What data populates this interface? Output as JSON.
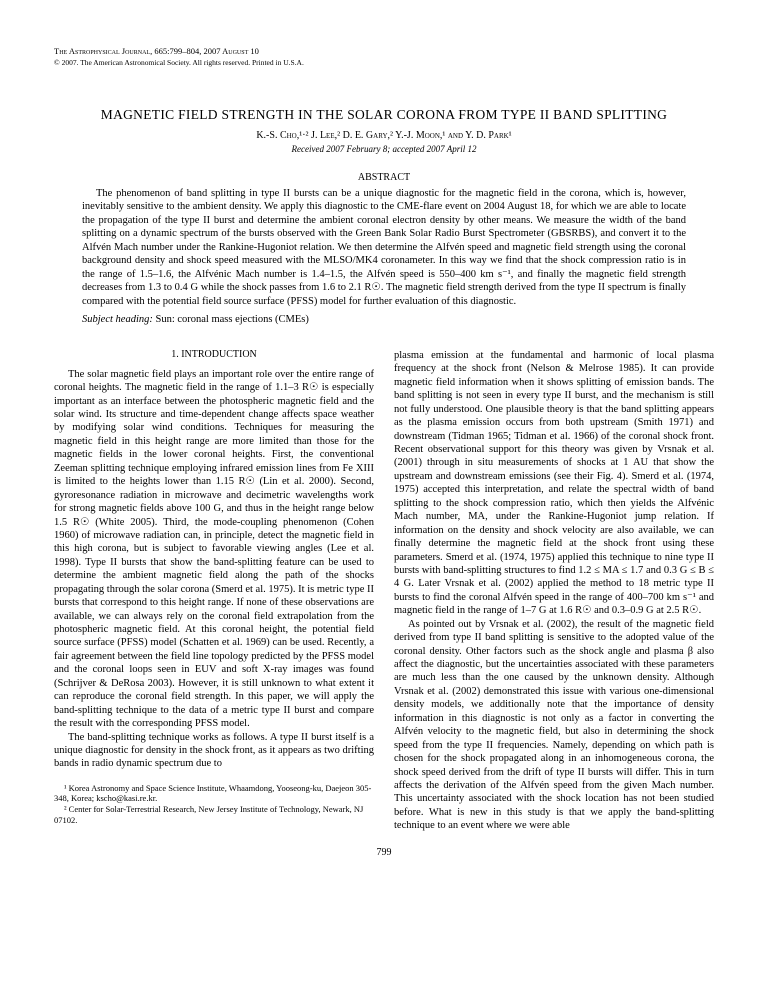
{
  "header": {
    "journal": "The Astrophysical Journal, 665:799–804, 2007 August 10",
    "copyright": "© 2007. The American Astronomical Society. All rights reserved. Printed in U.S.A."
  },
  "title": "MAGNETIC FIELD STRENGTH IN THE SOLAR CORONA FROM TYPE II BAND SPLITTING",
  "authors": "K.-S. Cho,¹·² J. Lee,² D. E. Gary,² Y.-J. Moon,¹ and Y. D. Park¹",
  "received": "Received 2007 February 8; accepted 2007 April 12",
  "abstract": {
    "head": "ABSTRACT",
    "body": "The phenomenon of band splitting in type II bursts can be a unique diagnostic for the magnetic field in the corona, which is, however, inevitably sensitive to the ambient density. We apply this diagnostic to the CME-flare event on 2004 August 18, for which we are able to locate the propagation of the type II burst and determine the ambient coronal electron density by other means. We measure the width of the band splitting on a dynamic spectrum of the bursts observed with the Green Bank Solar Radio Burst Spectrometer (GBSRBS), and convert it to the Alfvén Mach number under the Rankine-Hugoniot relation. We then determine the Alfvén speed and magnetic field strength using the coronal background density and shock speed measured with the MLSO/MK4 coronameter. In this way we find that the shock compression ratio is in the range of 1.5–1.6, the Alfvénic Mach number is 1.4–1.5, the Alfvén speed is 550–400 km s⁻¹, and finally the magnetic field strength decreases from 1.3 to 0.4 G while the shock passes from 1.6 to 2.1 R☉. The magnetic field strength derived from the type II spectrum is finally compared with the potential field source surface (PFSS) model for further evaluation of this diagnostic."
  },
  "subject": {
    "label": "Subject heading:",
    "value": "Sun: coronal mass ejections (CMEs)"
  },
  "section1": {
    "head": "1. INTRODUCTION",
    "p1": "The solar magnetic field plays an important role over the entire range of coronal heights. The magnetic field in the range of 1.1–3 R☉ is especially important as an interface between the photospheric magnetic field and the solar wind. Its structure and time-dependent change affects space weather by modifying solar wind conditions. Techniques for measuring the magnetic field in this height range are more limited than those for the magnetic fields in the lower coronal heights. First, the conventional Zeeman splitting technique employing infrared emission lines from Fe XIII is limited to the heights lower than 1.15 R☉ (Lin et al. 2000). Second, gyroresonance radiation in microwave and decimetric wavelengths work for strong magnetic fields above 100 G, and thus in the height range below 1.5 R☉ (White 2005). Third, the mode-coupling phenomenon (Cohen 1960) of microwave radiation can, in principle, detect the magnetic field in this high corona, but is subject to favorable viewing angles (Lee et al. 1998). Type II bursts that show the band-splitting feature can be used to determine the ambient magnetic field along the path of the shocks propagating through the solar corona (Smerd et al. 1975). It is metric type II bursts that correspond to this height range. If none of these observations are available, we can always rely on the coronal field extrapolation from the photospheric magnetic field. At this coronal height, the potential field source surface (PFSS) model (Schatten et al. 1969) can be used. Recently, a fair agreement between the field line topology predicted by the PFSS model and the coronal loops seen in EUV and soft X-ray images was found (Schrijver & DeRosa 2003). However, it is still unknown to what extent it can reproduce the coronal field strength. In this paper, we will apply the band-splitting technique to the data of a metric type II burst and compare the result with the corresponding PFSS model.",
    "p2": "The band-splitting technique works as follows. A type II burst itself is a unique diagnostic for density in the shock front, as it appears as two drifting bands in radio dynamic spectrum due to",
    "p3": "plasma emission at the fundamental and harmonic of local plasma frequency at the shock front (Nelson & Melrose 1985). It can provide magnetic field information when it shows splitting of emission bands. The band splitting is not seen in every type II burst, and the mechanism is still not fully understood. One plausible theory is that the band splitting appears as the plasma emission occurs from both upstream (Smith 1971) and downstream (Tidman 1965; Tidman et al. 1966) of the coronal shock front. Recent observational support for this theory was given by Vrsnak et al. (2001) through in situ measurements of shocks at 1 AU that show the upstream and downstream emissions (see their Fig. 4). Smerd et al. (1974, 1975) accepted this interpretation, and relate the spectral width of band splitting to the shock compression ratio, which then yields the Alfvénic Mach number, MA, under the Rankine-Hugoniot jump relation. If information on the density and shock velocity are also available, we can finally determine the magnetic field at the shock front using these parameters. Smerd et al. (1974, 1975) applied this technique to nine type II bursts with band-splitting structures to find 1.2 ≤ MA ≤ 1.7 and 0.3 G ≤ B ≤ 4 G. Later Vrsnak et al. (2002) applied the method to 18 metric type II bursts to find the coronal Alfvén speed in the range of 400–700 km s⁻¹ and magnetic field in the range of 1–7 G at 1.6 R☉ and 0.3–0.9 G at 2.5 R☉.",
    "p4": "As pointed out by Vrsnak et al. (2002), the result of the magnetic field derived from type II band splitting is sensitive to the adopted value of the coronal density. Other factors such as the shock angle and plasma β also affect the diagnostic, but the uncertainties associated with these parameters are much less than the one caused by the unknown density. Although Vrsnak et al. (2002) demonstrated this issue with various one-dimensional density models, we additionally note that the importance of density information in this diagnostic is not only as a factor in converting the Alfvén velocity to the magnetic field, but also in determining the shock speed from the type II frequencies. Namely, depending on which path is chosen for the shock propagated along in an inhomogeneous corona, the shock speed derived from the drift of type II bursts will differ. This in turn affects the derivation of the Alfvén speed from the given Mach number. This uncertainty associated with the shock location has not been studied before. What is new in this study is that we apply the band-splitting technique to an event where we were able"
  },
  "footnotes": {
    "f1": "¹ Korea Astronomy and Space Science Institute, Whaamdong, Yooseong-ku, Daejeon 305-348, Korea; kscho@kasi.re.kr.",
    "f2": "² Center for Solar-Terrestrial Research, New Jersey Institute of Technology, Newark, NJ 07102."
  },
  "pagenum": "799"
}
